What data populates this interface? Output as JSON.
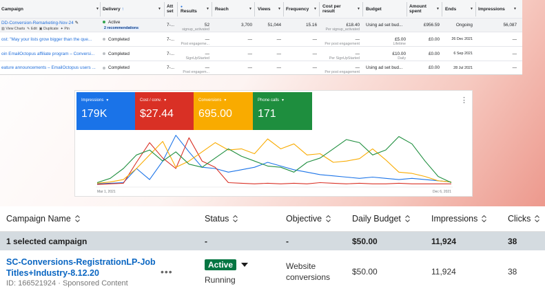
{
  "facebook": {
    "headers": {
      "campaign": "Campaign",
      "delivery": "Delivery",
      "delivery_sort": "↑",
      "attribution": "Att set",
      "results": "Results",
      "reach": "Reach",
      "views": "Views",
      "frequency": "Frequency",
      "cost_per_result": "Cost per result",
      "budget": "Budget",
      "amount_spent": "Amount spent",
      "ends": "Ends",
      "impressions": "Impressions"
    },
    "rows": [
      {
        "campaign": "DD-Conversion-Remarketing-Nov-24",
        "actions": {
          "view_charts": "View Charts",
          "edit": "Edit",
          "duplicate": "Duplicate",
          "pin": "Pin"
        },
        "delivery": "Active",
        "recommendations": "2 recommendations",
        "attribution": "7-...",
        "results": "52",
        "results_sub": "signup_activated",
        "reach": "3,700",
        "views": "51,044",
        "frequency": "15.16",
        "cost_per_result": "£18.40",
        "cost_sub": "Per signup_activated",
        "budget": "Using ad set bud...",
        "budget_sub": "",
        "amount_spent": "£956.59",
        "ends": "Ongoing",
        "impressions": "56,087"
      },
      {
        "campaign": "ost: \"May your lists grow bigger than the que...",
        "delivery": "Completed",
        "attribution": "7-...",
        "results": "—",
        "results_sub": "Post engageme...",
        "reach": "—",
        "views": "—",
        "frequency": "—",
        "cost_per_result": "—",
        "cost_sub": "Per post engagement",
        "budget": "£5.00",
        "budget_sub": "Lifetime",
        "amount_spent": "£0.00",
        "ends": "26 Dec 2021",
        "impressions": "—"
      },
      {
        "campaign": "oin EmailOctopus affiliate program – Conversi...",
        "delivery": "Completed",
        "attribution": "7-...",
        "results": "—",
        "results_sub": "SignUpStarted",
        "reach": "—",
        "views": "—",
        "frequency": "—",
        "cost_per_result": "—",
        "cost_sub": "Per SignUpStarted",
        "budget": "£10.00",
        "budget_sub": "Daily",
        "amount_spent": "£0.00",
        "ends": "6 Sep 2021",
        "impressions": "—"
      },
      {
        "campaign": "eature announcements – EmailOctopus users ...",
        "delivery": "Completed",
        "attribution": "7-...",
        "results": "—",
        "results_sub": "Post engagem...",
        "reach": "—",
        "views": "—",
        "frequency": "—",
        "cost_per_result": "—",
        "cost_sub": "Per post engagement",
        "budget": "Using ad set bud...",
        "budget_sub": "",
        "amount_spent": "£0.00",
        "ends": "28 Jul 2021",
        "impressions": "—"
      }
    ],
    "colors": {
      "active": "#31a24c",
      "completed": "#bcc0c4",
      "link": "#216fdb"
    }
  },
  "google_ads": {
    "tiles": [
      {
        "label": "Impressions",
        "value": "179K",
        "color": "#1a73e8"
      },
      {
        "label": "Cost / conv.",
        "value": "$27.44",
        "color": "#d93025"
      },
      {
        "label": "Conversions",
        "value": "695.00",
        "color": "#f9ab00"
      },
      {
        "label": "Phone calls",
        "value": "171",
        "color": "#1e8e3e"
      }
    ],
    "kebab_icon": "more-vert-icon"
  },
  "chart_data": {
    "type": "line",
    "x_start_label": "Mar 1, 2021",
    "x_end_label": "Dec 6, 2021",
    "series": [
      {
        "name": "Impressions",
        "color": "#1a73e8",
        "values": [
          3,
          4,
          5,
          28,
          10,
          40,
          82,
          55,
          30,
          28,
          22,
          26,
          30,
          38,
          32,
          26,
          22,
          18,
          16,
          14,
          12,
          14,
          12,
          10,
          12,
          10,
          8,
          6
        ]
      },
      {
        "name": "Cost / conv.",
        "color": "#d93025",
        "values": [
          2,
          3,
          4,
          38,
          70,
          45,
          28,
          78,
          40,
          30,
          5,
          4,
          3,
          4,
          3,
          4,
          3,
          5,
          4,
          3,
          4,
          3,
          3,
          4,
          3,
          3,
          3,
          3
        ]
      },
      {
        "name": "Conversions",
        "color": "#f9ab00",
        "values": [
          4,
          6,
          10,
          28,
          50,
          72,
          30,
          40,
          55,
          70,
          58,
          60,
          52,
          76,
          60,
          68,
          50,
          52,
          38,
          40,
          44,
          60,
          42,
          22,
          20,
          15,
          8,
          6
        ]
      },
      {
        "name": "Phone calls",
        "color": "#1e8e3e",
        "values": [
          5,
          12,
          28,
          50,
          58,
          40,
          55,
          35,
          30,
          45,
          60,
          48,
          40,
          32,
          30,
          22,
          38,
          45,
          60,
          75,
          70,
          50,
          58,
          80,
          68,
          40,
          15,
          5
        ]
      }
    ]
  },
  "linkedin": {
    "headers": {
      "campaign_name": "Campaign Name",
      "status": "Status",
      "objective": "Objective",
      "daily_budget": "Daily Budget",
      "impressions": "Impressions",
      "clicks": "Clicks"
    },
    "selected_row": {
      "label": "1 selected campaign",
      "status": "-",
      "objective": "-",
      "daily_budget": "$50.00",
      "impressions": "11,924",
      "clicks": "38"
    },
    "row": {
      "campaign_name": "SC-Conversions-RegistrationLP-Job Titles+Industry-8.12.20",
      "meta": "ID: 166521924 · Sponsored Content",
      "more": "•••",
      "status_badge": "Active",
      "status_sub": "Running",
      "objective": "Website conversions",
      "daily_budget": "$50.00",
      "impressions": "11,924",
      "clicks": "38"
    },
    "colors": {
      "link": "#0a66c2",
      "active": "#057642",
      "selected_bg": "#d4dbe0"
    }
  }
}
